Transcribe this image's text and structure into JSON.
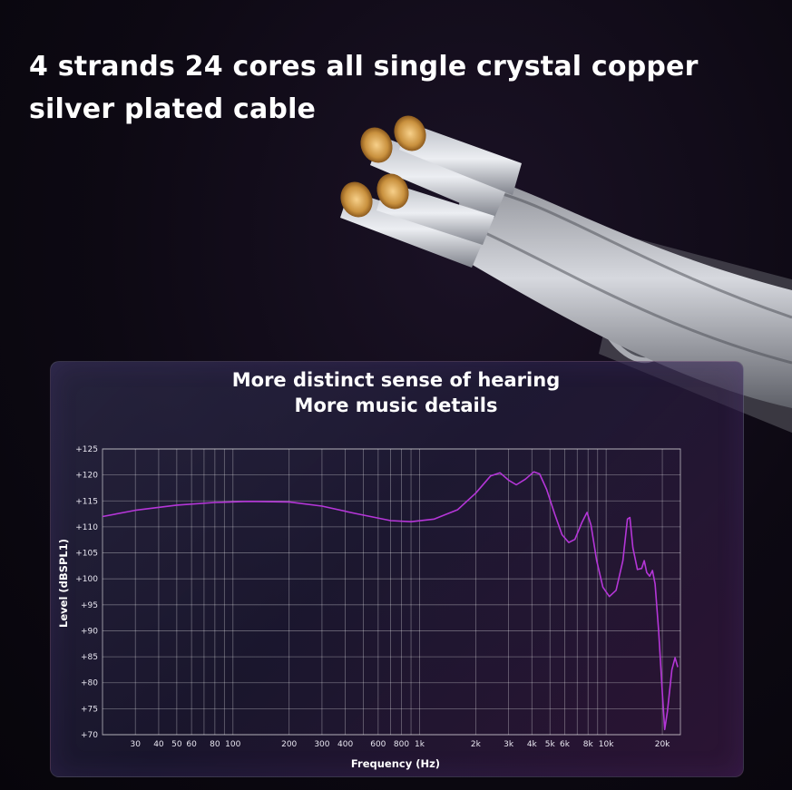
{
  "headline": {
    "line1": "4 strands 24 cores all single crystal copper",
    "line2": "silver plated cable"
  },
  "chart_data": {
    "type": "line",
    "title": "More distinct sense of hearing",
    "subtitle": "More music details",
    "xlabel": "Frequency (Hz)",
    "ylabel": "Level (dBSPL1)",
    "xscale": "log",
    "xlim": [
      20,
      25000
    ],
    "ylim": [
      70,
      125
    ],
    "grid": true,
    "line_color": "#b536d8",
    "xticks": [
      {
        "value": 30,
        "label": "30"
      },
      {
        "value": 40,
        "label": "40"
      },
      {
        "value": 50,
        "label": "50"
      },
      {
        "value": 60,
        "label": "60"
      },
      {
        "value": 80,
        "label": "80"
      },
      {
        "value": 100,
        "label": "100"
      },
      {
        "value": 200,
        "label": "200"
      },
      {
        "value": 300,
        "label": "300"
      },
      {
        "value": 400,
        "label": "400"
      },
      {
        "value": 600,
        "label": "600"
      },
      {
        "value": 800,
        "label": "800"
      },
      {
        "value": 1000,
        "label": "1k"
      },
      {
        "value": 2000,
        "label": "2k"
      },
      {
        "value": 3000,
        "label": "3k"
      },
      {
        "value": 4000,
        "label": "4k"
      },
      {
        "value": 5000,
        "label": "5k"
      },
      {
        "value": 6000,
        "label": "6k"
      },
      {
        "value": 8000,
        "label": "8k"
      },
      {
        "value": 10000,
        "label": "10k"
      },
      {
        "value": 20000,
        "label": "20k"
      }
    ],
    "yticks": [
      {
        "value": 125,
        "label": "+125"
      },
      {
        "value": 120,
        "label": "+120"
      },
      {
        "value": 115,
        "label": "+115"
      },
      {
        "value": 110,
        "label": "+110"
      },
      {
        "value": 105,
        "label": "+105"
      },
      {
        "value": 100,
        "label": "+100"
      },
      {
        "value": 95,
        "label": "+95"
      },
      {
        "value": 90,
        "label": "+90"
      },
      {
        "value": 85,
        "label": "+85"
      },
      {
        "value": 80,
        "label": "+80"
      },
      {
        "value": 75,
        "label": "+75"
      },
      {
        "value": 70,
        "label": "+70"
      }
    ],
    "series": [
      {
        "points": [
          [
            20,
            112.0
          ],
          [
            30,
            113.2
          ],
          [
            50,
            114.2
          ],
          [
            80,
            114.7
          ],
          [
            120,
            114.9
          ],
          [
            200,
            114.8
          ],
          [
            300,
            114.0
          ],
          [
            450,
            112.6
          ],
          [
            700,
            111.2
          ],
          [
            900,
            111.0
          ],
          [
            1200,
            111.5
          ],
          [
            1600,
            113.3
          ],
          [
            2000,
            116.5
          ],
          [
            2400,
            119.8
          ],
          [
            2700,
            120.4
          ],
          [
            3000,
            119.0
          ],
          [
            3300,
            118.1
          ],
          [
            3700,
            119.2
          ],
          [
            4100,
            120.6
          ],
          [
            4400,
            120.2
          ],
          [
            4800,
            117.2
          ],
          [
            5300,
            112.5
          ],
          [
            5800,
            108.5
          ],
          [
            6300,
            107.0
          ],
          [
            6800,
            107.6
          ],
          [
            7400,
            110.8
          ],
          [
            7900,
            112.8
          ],
          [
            8300,
            110.3
          ],
          [
            8900,
            103.5
          ],
          [
            9600,
            98.4
          ],
          [
            10400,
            96.6
          ],
          [
            11300,
            97.8
          ],
          [
            12300,
            103.5
          ],
          [
            13000,
            111.5
          ],
          [
            13400,
            111.8
          ],
          [
            13900,
            106.0
          ],
          [
            14700,
            101.8
          ],
          [
            15500,
            102.0
          ],
          [
            16000,
            103.5
          ],
          [
            16500,
            101.2
          ],
          [
            17100,
            100.5
          ],
          [
            17700,
            101.6
          ],
          [
            18300,
            99.0
          ],
          [
            19100,
            90.0
          ],
          [
            20000,
            78.0
          ],
          [
            20600,
            71.0
          ],
          [
            21300,
            74.5
          ],
          [
            22500,
            82.5
          ],
          [
            23400,
            84.8
          ],
          [
            24200,
            83.0
          ]
        ]
      }
    ]
  }
}
